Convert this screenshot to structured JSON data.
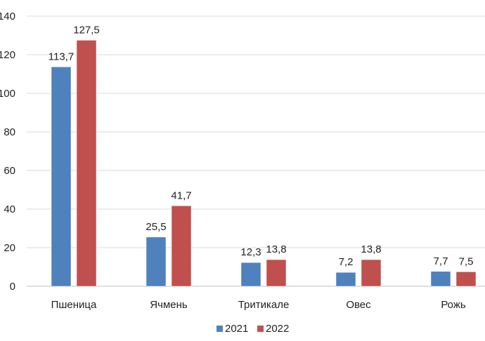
{
  "chart_data": {
    "type": "bar",
    "title": "",
    "xlabel": "",
    "ylabel": "",
    "categories": [
      "Пшеница",
      "Ячмень",
      "Тритикале",
      "Овес",
      "Рожь"
    ],
    "series": [
      {
        "name": "2021",
        "values": [
          113.7,
          25.5,
          12.3,
          7.2,
          7.7
        ],
        "labels": [
          "113,7",
          "25,5",
          "12,3",
          "7,2",
          "7,7"
        ],
        "color": "#4f81bd"
      },
      {
        "name": "2022",
        "values": [
          127.5,
          41.7,
          13.8,
          13.8,
          7.5
        ],
        "labels": [
          "127,5",
          "41,7",
          "13,8",
          "13,8",
          "7,5"
        ],
        "color": "#c0504d"
      }
    ],
    "ylim": [
      0,
      140
    ],
    "yticks": [
      0,
      20,
      40,
      60,
      80,
      100,
      120,
      140
    ],
    "ytick_labels": [
      "0",
      "20",
      "40",
      "60",
      "80",
      "100",
      "120",
      "140"
    ],
    "grid": true,
    "legend_position": "bottom"
  }
}
